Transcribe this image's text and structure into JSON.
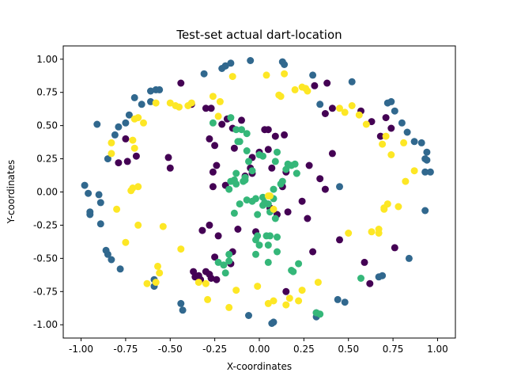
{
  "chart_data": {
    "type": "scatter",
    "title": "Test-set actual dart-location",
    "xlabel": "X-coordinates",
    "ylabel": "Y-coordinates",
    "xlim": [
      -1.1,
      1.1
    ],
    "ylim": [
      -1.1,
      1.1
    ],
    "xticks": [
      "-1.00",
      "-0.75",
      "-0.50",
      "-0.25",
      "0.00",
      "0.25",
      "0.50",
      "0.75",
      "1.00"
    ],
    "yticks": [
      "1.00",
      "0.75",
      "0.50",
      "0.25",
      "0.00",
      "-0.25",
      "-0.50",
      "-0.75",
      "-1.00"
    ],
    "grid": false,
    "series": [
      {
        "color": "#440154",
        "points": [
          [
            -0.44,
            0.82
          ],
          [
            -0.38,
            0.66
          ],
          [
            -0.3,
            0.63
          ],
          [
            -0.27,
            0.63
          ],
          [
            -0.18,
            0.55
          ],
          [
            -0.1,
            0.54
          ],
          [
            -0.15,
            0.48
          ],
          [
            -0.21,
            0.51
          ],
          [
            -0.28,
            0.4
          ],
          [
            -0.25,
            0.35
          ],
          [
            -0.14,
            0.33
          ],
          [
            0.03,
            0.47
          ],
          [
            0.05,
            0.47
          ],
          [
            0.09,
            0.42
          ],
          [
            0.14,
            0.43
          ],
          [
            0.05,
            0.32
          ],
          [
            0.0,
            0.3
          ],
          [
            -0.05,
            0.18
          ],
          [
            -0.04,
            0.14
          ],
          [
            -0.08,
            0.12
          ],
          [
            -0.04,
            0.26
          ],
          [
            -0.26,
            0.15
          ],
          [
            -0.24,
            0.2
          ],
          [
            -0.26,
            0.04
          ],
          [
            -0.19,
            0.05
          ],
          [
            0.07,
            0.18
          ],
          [
            0.15,
            0.15
          ],
          [
            0.13,
            0.04
          ],
          [
            0.06,
            -0.12
          ],
          [
            0.16,
            -0.15
          ],
          [
            0.24,
            -0.07
          ],
          [
            0.27,
            -0.2
          ],
          [
            0.34,
            0.1
          ],
          [
            0.37,
            0.02
          ],
          [
            0.41,
            0.29
          ],
          [
            0.37,
            0.59
          ],
          [
            0.38,
            0.82
          ],
          [
            0.31,
            0.8
          ],
          [
            0.28,
            0.2
          ],
          [
            0.3,
            -0.45
          ],
          [
            -0.51,
            0.26
          ],
          [
            -0.5,
            0.18
          ],
          [
            -0.75,
            0.4
          ],
          [
            -0.74,
            0.23
          ],
          [
            -0.69,
            0.27
          ],
          [
            -0.79,
            0.22
          ],
          [
            -0.28,
            -0.25
          ],
          [
            -0.32,
            -0.29
          ],
          [
            -0.23,
            -0.33
          ],
          [
            -0.12,
            -0.28
          ],
          [
            -0.02,
            -0.3
          ],
          [
            -0.15,
            -0.45
          ],
          [
            -0.16,
            -0.54
          ],
          [
            -0.25,
            -0.49
          ],
          [
            -0.3,
            -0.6
          ],
          [
            -0.34,
            -0.63
          ],
          [
            -0.36,
            -0.64
          ],
          [
            -0.37,
            -0.6
          ],
          [
            -0.33,
            -0.66
          ],
          [
            -0.28,
            -0.62
          ],
          [
            -0.27,
            -0.65
          ],
          [
            -0.24,
            -0.66
          ],
          [
            0.1,
            -0.17
          ],
          [
            0.15,
            -0.75
          ],
          [
            0.63,
            0.53
          ],
          [
            0.71,
            0.56
          ],
          [
            0.68,
            0.42
          ],
          [
            0.74,
            0.48
          ],
          [
            0.76,
            -0.42
          ],
          [
            0.59,
            -0.53
          ],
          [
            0.62,
            -0.69
          ],
          [
            0.45,
            -0.36
          ],
          [
            0.57,
            0.61
          ],
          [
            0.41,
            0.63
          ]
        ]
      },
      {
        "color": "#31688e",
        "points": [
          [
            -0.19,
            0.95
          ],
          [
            -0.16,
            0.97
          ],
          [
            -0.05,
            0.99
          ],
          [
            0.14,
            0.96
          ],
          [
            0.13,
            0.98
          ],
          [
            0.3,
            0.88
          ],
          [
            0.34,
            0.66
          ],
          [
            0.52,
            0.83
          ],
          [
            0.72,
            0.67
          ],
          [
            0.74,
            0.68
          ],
          [
            0.76,
            0.61
          ],
          [
            0.8,
            0.52
          ],
          [
            0.83,
            0.45
          ],
          [
            0.87,
            0.38
          ],
          [
            0.91,
            0.37
          ],
          [
            0.94,
            0.3
          ],
          [
            0.93,
            0.25
          ],
          [
            0.94,
            0.24
          ],
          [
            0.96,
            0.15
          ],
          [
            0.93,
            0.15
          ],
          [
            0.93,
            -0.14
          ],
          [
            0.84,
            -0.5
          ],
          [
            0.69,
            -0.63
          ],
          [
            0.67,
            -0.64
          ],
          [
            0.48,
            -0.83
          ],
          [
            0.44,
            -0.81
          ],
          [
            0.32,
            -0.91
          ],
          [
            0.32,
            -0.94
          ],
          [
            0.08,
            -0.98
          ],
          [
            0.07,
            -0.99
          ],
          [
            -0.06,
            -0.93
          ],
          [
            -0.43,
            -0.89
          ],
          [
            -0.44,
            -0.84
          ],
          [
            -0.59,
            -0.71
          ],
          [
            -0.59,
            -0.66
          ],
          [
            -0.78,
            -0.58
          ],
          [
            -0.83,
            -0.51
          ],
          [
            -0.85,
            -0.47
          ],
          [
            -0.86,
            -0.44
          ],
          [
            -0.89,
            -0.24
          ],
          [
            -0.89,
            -0.08
          ],
          [
            -0.9,
            -0.02
          ],
          [
            -0.95,
            -0.15
          ],
          [
            -0.95,
            -0.17
          ],
          [
            -0.96,
            -0.01
          ],
          [
            -0.98,
            0.05
          ],
          [
            -0.85,
            0.25
          ],
          [
            -0.81,
            0.43
          ],
          [
            -0.79,
            0.49
          ],
          [
            -0.75,
            0.52
          ],
          [
            -0.73,
            0.58
          ],
          [
            -0.7,
            0.71
          ],
          [
            -0.66,
            0.66
          ],
          [
            -0.61,
            0.68
          ],
          [
            -0.58,
            0.77
          ],
          [
            -0.61,
            0.76
          ],
          [
            -0.56,
            0.77
          ],
          [
            0.45,
            0.04
          ],
          [
            -0.91,
            0.51
          ],
          [
            -0.19,
            0.95
          ],
          [
            -0.31,
            0.89
          ],
          [
            -0.21,
            0.93
          ]
        ]
      },
      {
        "color": "#35b779",
        "points": [
          [
            -0.26,
            0.52
          ],
          [
            -0.16,
            0.56
          ],
          [
            -0.13,
            0.47
          ],
          [
            -0.1,
            0.47
          ],
          [
            -0.12,
            0.38
          ],
          [
            -0.11,
            0.38
          ],
          [
            -0.07,
            0.44
          ],
          [
            -0.07,
            0.31
          ],
          [
            0.0,
            0.28
          ],
          [
            0.02,
            0.27
          ],
          [
            -0.06,
            0.23
          ],
          [
            -0.04,
            0.16
          ],
          [
            -0.09,
            0.08
          ],
          [
            -0.08,
            0.11
          ],
          [
            -0.08,
            0.09
          ],
          [
            -0.16,
            0.08
          ],
          [
            -0.13,
            0.14
          ],
          [
            -0.14,
            0.09
          ],
          [
            -0.13,
            0.06
          ],
          [
            -0.17,
            0.02
          ],
          [
            0.1,
            0.3
          ],
          [
            0.09,
            0.23
          ],
          [
            0.16,
            0.21
          ],
          [
            0.18,
            0.2
          ],
          [
            0.2,
            0.21
          ],
          [
            0.15,
            0.17
          ],
          [
            0.21,
            0.14
          ],
          [
            0.21,
            0.14
          ],
          [
            0.13,
            0.08
          ],
          [
            0.12,
            0.06
          ],
          [
            0.08,
            0.02
          ],
          [
            0.08,
            -0.05
          ],
          [
            0.02,
            -0.04
          ],
          [
            -0.02,
            -0.05
          ],
          [
            -0.07,
            -0.06
          ],
          [
            -0.11,
            -0.09
          ],
          [
            -0.04,
            -0.07
          ],
          [
            -0.14,
            -0.16
          ],
          [
            0.09,
            -0.2
          ],
          [
            0.06,
            -0.15
          ],
          [
            0.06,
            -0.33
          ],
          [
            0.04,
            -0.33
          ],
          [
            -0.01,
            -0.33
          ],
          [
            0.05,
            -0.4
          ],
          [
            0.1,
            -0.34
          ],
          [
            0.05,
            -0.53
          ],
          [
            0.22,
            -0.54
          ],
          [
            0.19,
            -0.6
          ],
          [
            0.18,
            -0.59
          ],
          [
            0.1,
            -0.45
          ],
          [
            -0.23,
            -0.53
          ],
          [
            -0.17,
            -0.47
          ],
          [
            -0.02,
            -0.47
          ],
          [
            0.0,
            -0.4
          ],
          [
            -0.17,
            -0.52
          ],
          [
            -0.2,
            -0.55
          ],
          [
            0.57,
            -0.65
          ],
          [
            0.34,
            -0.92
          ],
          [
            0.32,
            -0.91
          ],
          [
            -0.02,
            -0.36
          ],
          [
            -0.19,
            -0.61
          ],
          [
            -0.01,
            -0.17
          ],
          [
            0.02,
            -0.1
          ],
          [
            0.05,
            -0.09
          ],
          [
            0.03,
            -0.08
          ]
        ]
      },
      {
        "color": "#fde725",
        "points": [
          [
            -0.15,
            0.87
          ],
          [
            0.04,
            0.88
          ],
          [
            0.14,
            0.89
          ],
          [
            0.24,
            0.79
          ],
          [
            0.26,
            0.78
          ],
          [
            0.27,
            0.76
          ],
          [
            0.2,
            0.77
          ],
          [
            0.11,
            0.73
          ],
          [
            0.12,
            0.72
          ],
          [
            0.45,
            0.63
          ],
          [
            0.52,
            0.65
          ],
          [
            0.48,
            0.6
          ],
          [
            0.56,
            0.58
          ],
          [
            0.6,
            0.51
          ],
          [
            0.71,
            0.42
          ],
          [
            0.69,
            0.36
          ],
          [
            0.74,
            0.28
          ],
          [
            0.81,
            0.37
          ],
          [
            0.87,
            0.16
          ],
          [
            0.82,
            0.08
          ],
          [
            0.78,
            -0.11
          ],
          [
            0.72,
            -0.09
          ],
          [
            0.7,
            -0.12
          ],
          [
            0.7,
            -0.13
          ],
          [
            0.67,
            -0.31
          ],
          [
            0.63,
            -0.3
          ],
          [
            0.5,
            -0.31
          ],
          [
            0.33,
            -0.68
          ],
          [
            0.24,
            -0.74
          ],
          [
            0.17,
            -0.8
          ],
          [
            -0.13,
            -0.74
          ],
          [
            -0.17,
            -0.87
          ],
          [
            -0.29,
            -0.81
          ],
          [
            -0.34,
            -0.68
          ],
          [
            -0.3,
            -0.69
          ],
          [
            -0.56,
            -0.61
          ],
          [
            -0.57,
            -0.56
          ],
          [
            -0.58,
            -0.68
          ],
          [
            -0.63,
            -0.69
          ],
          [
            -0.75,
            -0.38
          ],
          [
            -0.8,
            -0.13
          ],
          [
            -0.72,
            0.01
          ],
          [
            -0.71,
            0.03
          ],
          [
            -0.68,
            0.04
          ],
          [
            -0.7,
            0.33
          ],
          [
            -0.71,
            0.39
          ],
          [
            -0.83,
            0.37
          ],
          [
            -0.83,
            0.29
          ],
          [
            -0.7,
            0.55
          ],
          [
            -0.68,
            0.56
          ],
          [
            -0.65,
            0.52
          ],
          [
            -0.58,
            0.67
          ],
          [
            -0.5,
            0.67
          ],
          [
            -0.47,
            0.65
          ],
          [
            -0.45,
            0.64
          ],
          [
            -0.38,
            0.67
          ],
          [
            -0.4,
            0.65
          ],
          [
            -0.26,
            0.72
          ],
          [
            -0.22,
            0.68
          ],
          [
            -0.23,
            0.57
          ],
          [
            -0.54,
            -0.26
          ],
          [
            0.05,
            -0.03
          ],
          [
            0.08,
            -0.13
          ],
          [
            -0.01,
            -0.71
          ],
          [
            0.05,
            -0.84
          ],
          [
            0.08,
            -0.82
          ],
          [
            0.15,
            -0.85
          ],
          [
            0.22,
            -0.82
          ],
          [
            -0.44,
            -0.43
          ],
          [
            0.06,
            -0.03
          ],
          [
            -0.68,
            -0.25
          ],
          [
            0.67,
            -0.28
          ]
        ]
      }
    ]
  }
}
